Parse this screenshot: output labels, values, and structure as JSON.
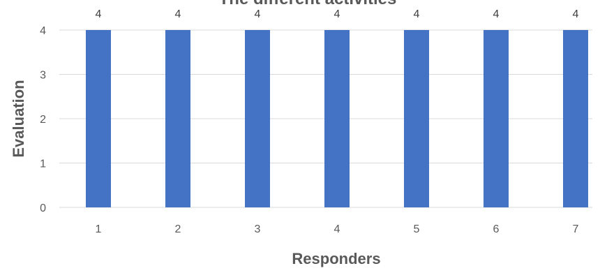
{
  "chart_data": {
    "type": "bar",
    "title": "The different activities",
    "xlabel": "Responders",
    "ylabel": "Evaluation",
    "categories": [
      "1",
      "2",
      "3",
      "4",
      "5",
      "6",
      "7"
    ],
    "values": [
      4,
      4,
      4,
      4,
      4,
      4,
      4
    ],
    "data_labels": [
      "4",
      "4",
      "4",
      "4",
      "4",
      "4",
      "4"
    ],
    "y_ticks": [
      "0",
      "1",
      "2",
      "3",
      "4"
    ],
    "ylim": [
      0,
      4
    ],
    "grid": true,
    "legend": "none",
    "colors": {
      "bar": "#4472c4",
      "grid": "#d9d9d9",
      "text": "#595959"
    }
  }
}
